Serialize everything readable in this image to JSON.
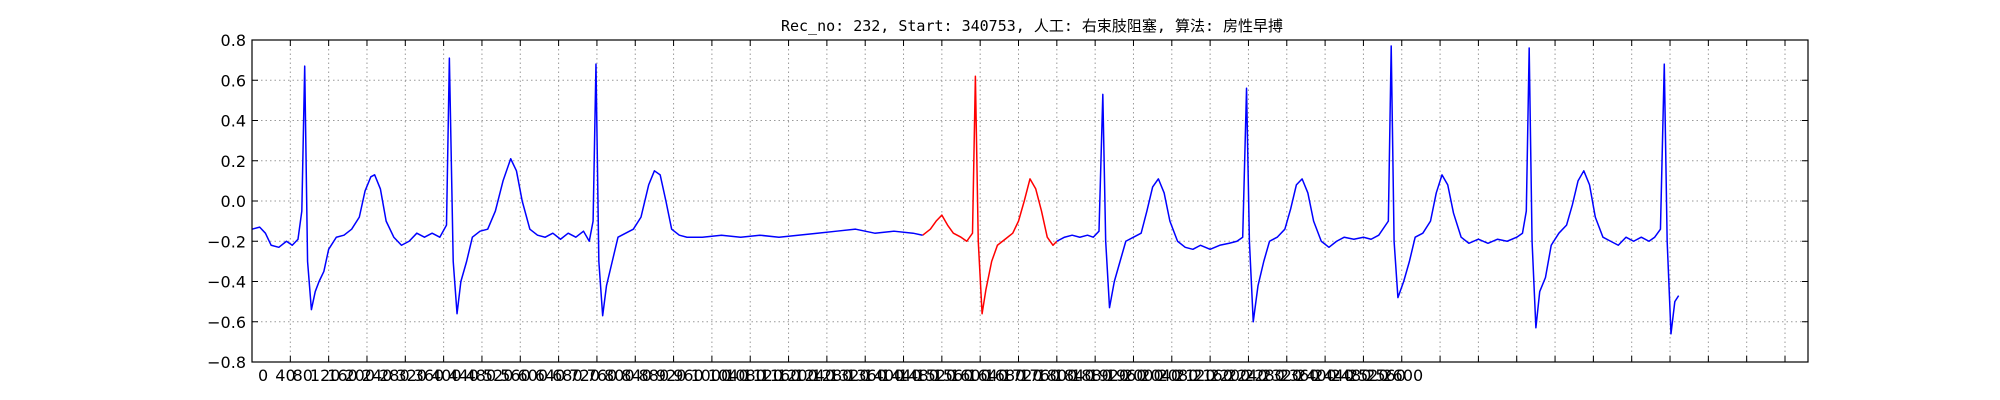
{
  "chart_data": {
    "type": "line",
    "title": "Rec_no: 232, Start: 340753, 人工: 右束肢阻塞, 算法: 房性早搏",
    "xlabel": "",
    "ylabel": "",
    "xlim": [
      0,
      1624
    ],
    "ylim": [
      -0.8,
      0.8
    ],
    "grid": true,
    "yticks": [
      "0.8",
      "0.6",
      "0.4",
      "0.2",
      "0.0",
      "−0.2",
      "−0.4",
      "−0.6",
      "−0.8"
    ],
    "xticks": [
      "0",
      "40",
      "80",
      "120",
      "160",
      "200",
      "240",
      "280",
      "320",
      "360",
      "400",
      "440",
      "480",
      "520",
      "560",
      "600",
      "640",
      "680",
      "720",
      "760",
      "800",
      "840",
      "880",
      "920",
      "960",
      "1000",
      "1040",
      "1080",
      "1120",
      "1160",
      "1200",
      "1240",
      "1280",
      "1320",
      "1360",
      "1400",
      "1440",
      "1480",
      "1520",
      "1560",
      "1600",
      "1640",
      "1680",
      "1720",
      "1760",
      "1800",
      "1840",
      "1880",
      "1920",
      "1960",
      "2000",
      "2040",
      "2080",
      "2120",
      "2160",
      "2200",
      "2240",
      "2280",
      "2320",
      "2360",
      "2400",
      "2440",
      "2480",
      "2520",
      "2560",
      "2600"
    ],
    "series": [
      {
        "color": "#0000ff",
        "points": [
          [
            0,
            -0.14
          ],
          [
            8,
            -0.13
          ],
          [
            14,
            -0.16
          ],
          [
            20,
            -0.22
          ],
          [
            28,
            -0.23
          ],
          [
            36,
            -0.2
          ],
          [
            42,
            -0.22
          ],
          [
            48,
            -0.19
          ],
          [
            52,
            -0.05
          ],
          [
            55,
            0.67
          ],
          [
            58,
            -0.3
          ],
          [
            62,
            -0.54
          ],
          [
            66,
            -0.45
          ],
          [
            70,
            -0.4
          ],
          [
            75,
            -0.35
          ],
          [
            80,
            -0.24
          ],
          [
            88,
            -0.18
          ],
          [
            96,
            -0.17
          ],
          [
            104,
            -0.14
          ],
          [
            112,
            -0.08
          ],
          [
            118,
            0.05
          ],
          [
            124,
            0.12
          ],
          [
            128,
            0.13
          ],
          [
            134,
            0.06
          ],
          [
            140,
            -0.1
          ],
          [
            148,
            -0.18
          ],
          [
            156,
            -0.22
          ],
          [
            164,
            -0.2
          ],
          [
            172,
            -0.16
          ],
          [
            180,
            -0.18
          ],
          [
            188,
            -0.16
          ],
          [
            196,
            -0.18
          ],
          [
            203,
            -0.12
          ],
          [
            206,
            0.71
          ],
          [
            210,
            -0.3
          ],
          [
            214,
            -0.56
          ],
          [
            218,
            -0.4
          ],
          [
            224,
            -0.3
          ],
          [
            230,
            -0.18
          ],
          [
            238,
            -0.15
          ],
          [
            246,
            -0.14
          ],
          [
            254,
            -0.05
          ],
          [
            262,
            0.1
          ],
          [
            270,
            0.21
          ],
          [
            276,
            0.15
          ],
          [
            282,
            0.0
          ],
          [
            290,
            -0.14
          ],
          [
            298,
            -0.17
          ],
          [
            306,
            -0.18
          ],
          [
            314,
            -0.16
          ],
          [
            322,
            -0.19
          ],
          [
            330,
            -0.16
          ],
          [
            338,
            -0.18
          ],
          [
            346,
            -0.15
          ],
          [
            352,
            -0.2
          ],
          [
            356,
            -0.1
          ],
          [
            359,
            0.68
          ],
          [
            362,
            -0.3
          ],
          [
            366,
            -0.57
          ],
          [
            370,
            -0.42
          ],
          [
            376,
            -0.3
          ],
          [
            382,
            -0.18
          ],
          [
            390,
            -0.16
          ],
          [
            398,
            -0.14
          ],
          [
            406,
            -0.08
          ],
          [
            414,
            0.08
          ],
          [
            420,
            0.15
          ],
          [
            426,
            0.13
          ],
          [
            432,
            0.0
          ],
          [
            438,
            -0.14
          ],
          [
            446,
            -0.17
          ],
          [
            454,
            -0.18
          ],
          [
            470,
            -0.18
          ],
          [
            490,
            -0.17
          ],
          [
            510,
            -0.18
          ],
          [
            530,
            -0.17
          ],
          [
            550,
            -0.18
          ],
          [
            570,
            -0.17
          ],
          [
            590,
            -0.16
          ],
          [
            610,
            -0.15
          ],
          [
            630,
            -0.14
          ],
          [
            650,
            -0.16
          ],
          [
            670,
            -0.15
          ],
          [
            690,
            -0.16
          ],
          [
            700,
            -0.17
          ]
        ]
      },
      {
        "color": "#ff0000",
        "points": [
          [
            700,
            -0.17
          ],
          [
            708,
            -0.14
          ],
          [
            714,
            -0.1
          ],
          [
            720,
            -0.07
          ],
          [
            726,
            -0.12
          ],
          [
            732,
            -0.16
          ],
          [
            740,
            -0.18
          ],
          [
            746,
            -0.2
          ],
          [
            752,
            -0.16
          ],
          [
            755,
            0.62
          ],
          [
            758,
            -0.2
          ],
          [
            762,
            -0.56
          ],
          [
            766,
            -0.44
          ],
          [
            772,
            -0.3
          ],
          [
            778,
            -0.22
          ],
          [
            786,
            -0.19
          ],
          [
            794,
            -0.16
          ],
          [
            800,
            -0.1
          ],
          [
            806,
            0.0
          ],
          [
            812,
            0.11
          ],
          [
            818,
            0.06
          ],
          [
            824,
            -0.05
          ],
          [
            830,
            -0.18
          ],
          [
            836,
            -0.22
          ],
          [
            840,
            -0.2
          ]
        ]
      },
      {
        "color": "#0000ff",
        "points": [
          [
            840,
            -0.2
          ],
          [
            848,
            -0.18
          ],
          [
            856,
            -0.17
          ],
          [
            864,
            -0.18
          ],
          [
            872,
            -0.17
          ],
          [
            878,
            -0.18
          ],
          [
            884,
            -0.15
          ],
          [
            888,
            0.53
          ],
          [
            891,
            -0.2
          ],
          [
            895,
            -0.53
          ],
          [
            900,
            -0.4
          ],
          [
            906,
            -0.3
          ],
          [
            912,
            -0.2
          ],
          [
            920,
            -0.18
          ],
          [
            928,
            -0.16
          ],
          [
            934,
            -0.05
          ],
          [
            940,
            0.07
          ],
          [
            946,
            0.11
          ],
          [
            952,
            0.04
          ],
          [
            958,
            -0.1
          ],
          [
            966,
            -0.2
          ],
          [
            974,
            -0.23
          ],
          [
            982,
            -0.24
          ],
          [
            990,
            -0.22
          ],
          [
            1000,
            -0.24
          ],
          [
            1010,
            -0.22
          ],
          [
            1020,
            -0.21
          ],
          [
            1028,
            -0.2
          ],
          [
            1034,
            -0.18
          ],
          [
            1038,
            0.56
          ],
          [
            1041,
            -0.2
          ],
          [
            1045,
            -0.6
          ],
          [
            1050,
            -0.42
          ],
          [
            1056,
            -0.3
          ],
          [
            1062,
            -0.2
          ],
          [
            1070,
            -0.18
          ],
          [
            1078,
            -0.14
          ],
          [
            1084,
            -0.04
          ],
          [
            1090,
            0.08
          ],
          [
            1096,
            0.11
          ],
          [
            1102,
            0.04
          ],
          [
            1108,
            -0.1
          ],
          [
            1116,
            -0.2
          ],
          [
            1124,
            -0.23
          ],
          [
            1132,
            -0.2
          ],
          [
            1140,
            -0.18
          ],
          [
            1150,
            -0.19
          ],
          [
            1160,
            -0.18
          ],
          [
            1168,
            -0.19
          ],
          [
            1176,
            -0.17
          ],
          [
            1186,
            -0.1
          ],
          [
            1189,
            0.77
          ],
          [
            1192,
            -0.2
          ],
          [
            1196,
            -0.48
          ],
          [
            1202,
            -0.4
          ],
          [
            1208,
            -0.3
          ],
          [
            1214,
            -0.18
          ],
          [
            1222,
            -0.16
          ],
          [
            1230,
            -0.1
          ],
          [
            1236,
            0.04
          ],
          [
            1242,
            0.13
          ],
          [
            1248,
            0.08
          ],
          [
            1254,
            -0.06
          ],
          [
            1262,
            -0.18
          ],
          [
            1270,
            -0.21
          ],
          [
            1280,
            -0.19
          ],
          [
            1290,
            -0.21
          ],
          [
            1300,
            -0.19
          ],
          [
            1310,
            -0.2
          ],
          [
            1320,
            -0.18
          ],
          [
            1326,
            -0.16
          ],
          [
            1330,
            -0.05
          ],
          [
            1333,
            0.76
          ],
          [
            1336,
            -0.2
          ],
          [
            1340,
            -0.63
          ],
          [
            1344,
            -0.45
          ],
          [
            1350,
            -0.38
          ],
          [
            1356,
            -0.22
          ],
          [
            1364,
            -0.16
          ],
          [
            1372,
            -0.12
          ],
          [
            1378,
            -0.02
          ],
          [
            1384,
            0.1
          ],
          [
            1390,
            0.15
          ],
          [
            1396,
            0.08
          ],
          [
            1402,
            -0.08
          ],
          [
            1410,
            -0.18
          ],
          [
            1418,
            -0.2
          ],
          [
            1426,
            -0.22
          ],
          [
            1434,
            -0.18
          ],
          [
            1442,
            -0.2
          ],
          [
            1450,
            -0.18
          ],
          [
            1458,
            -0.2
          ],
          [
            1464,
            -0.18
          ],
          [
            1470,
            -0.14
          ],
          [
            1474,
            0.68
          ],
          [
            1477,
            -0.2
          ],
          [
            1481,
            -0.66
          ],
          [
            1485,
            -0.5
          ],
          [
            1489,
            -0.47
          ]
        ]
      }
    ]
  }
}
